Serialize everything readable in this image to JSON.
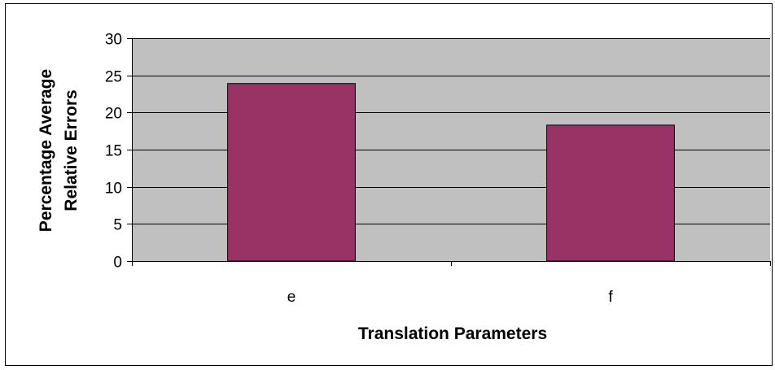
{
  "chart_data": {
    "type": "bar",
    "title": "",
    "xlabel": "Translation Parameters",
    "ylabel_lines": [
      "Percentage Average",
      "Relative Errors"
    ],
    "categories": [
      "e",
      "f"
    ],
    "values": [
      23.9,
      18.3
    ],
    "ylim": [
      0,
      30
    ],
    "yticks": [
      0,
      5,
      10,
      15,
      20,
      25,
      30
    ],
    "grid": true,
    "legend": "none",
    "colors": {
      "bar": "#993366",
      "plot_background": "#c0c0c0",
      "gridline": "#000000",
      "axis": "#000000",
      "frame": "#000000"
    }
  }
}
